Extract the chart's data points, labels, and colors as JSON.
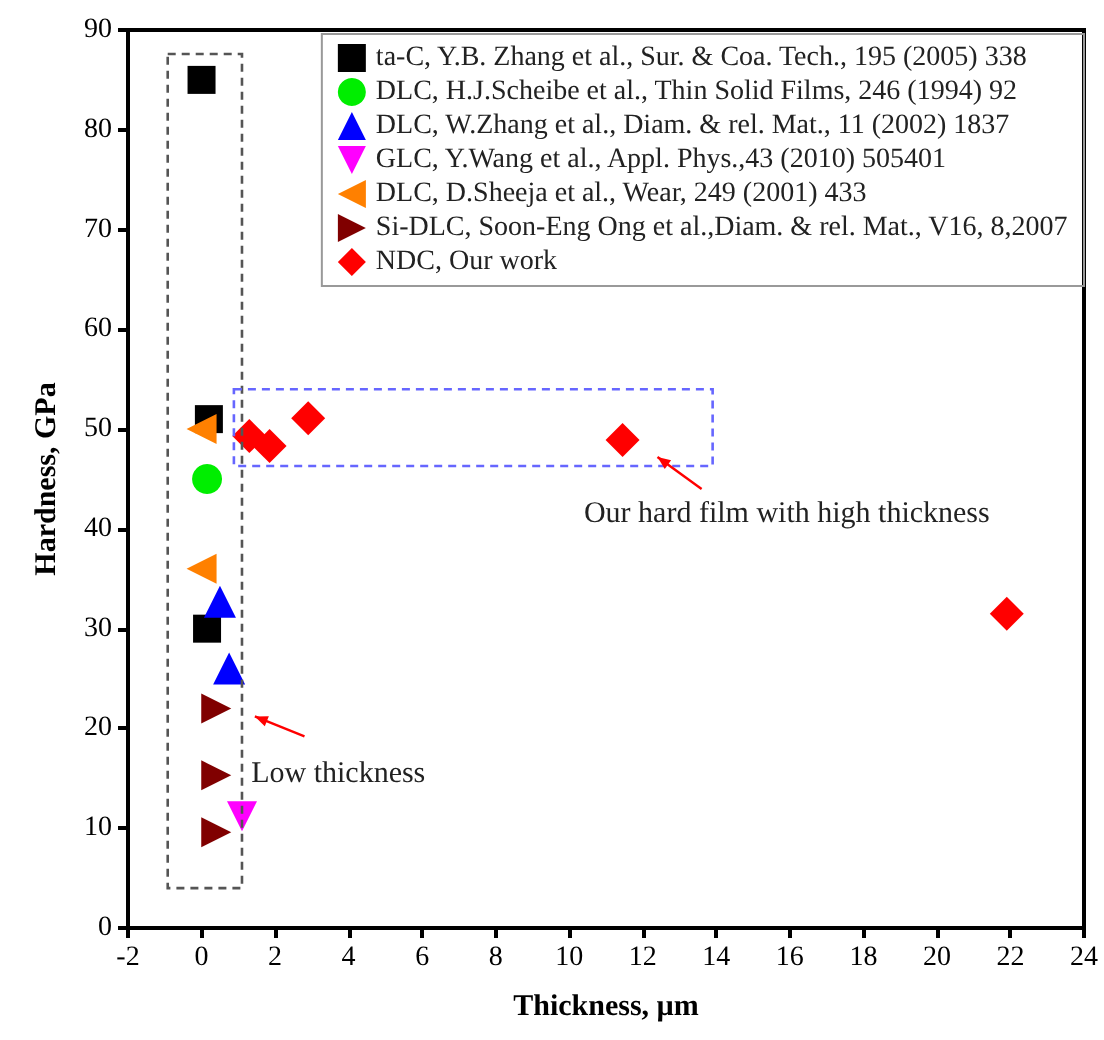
{
  "chart_data": {
    "type": "scatter",
    "xlabel": "Thickness, µm",
    "ylabel": "Hardness, GPa",
    "xlim": [
      -2,
      24
    ],
    "xticks": [
      -2,
      0,
      2,
      4,
      6,
      8,
      10,
      12,
      14,
      16,
      18,
      20,
      22,
      24
    ],
    "ylim": [
      0,
      90
    ],
    "yticks": [
      0,
      10,
      20,
      30,
      40,
      50,
      60,
      70,
      80,
      90
    ],
    "grid": false,
    "legend": "top right",
    "annotations": [
      "Low thickness",
      "Our hard film with high thickness"
    ],
    "series": [
      {
        "name": "ta-C, Y.B. Zhang et al., Sur. & Coa. Tech., 195 (2005) 338",
        "color": "#000000",
        "marker": "square",
        "x": [
          0,
          0.2,
          0.15
        ],
        "values": [
          85,
          51,
          30
        ]
      },
      {
        "name": "DLC, H.J.Scheibe et al., Thin Solid Films, 246 (1994) 92",
        "color": "#00ee00",
        "marker": "circle",
        "x": [
          0.15
        ],
        "values": [
          45
        ]
      },
      {
        "name": "DLC, W.Zhang et al., Diam. & rel. Mat., 11 (2002) 1837",
        "color": "#0000ff",
        "marker": "triangle",
        "x": [
          0.5,
          0.75
        ],
        "values": [
          32.7,
          26
        ]
      },
      {
        "name": "GLC, Y.Wang et al., Appl. Phys.,43 (2010) 505401",
        "color": "#ff00ff",
        "marker": "triangle-down",
        "x": [
          1.1
        ],
        "values": [
          11.2
        ]
      },
      {
        "name": "DLC, D.Sheeja et al., Wear, 249 (2001) 433",
        "color": "#ff8000",
        "marker": "triangle-left",
        "x": [
          0,
          0
        ],
        "values": [
          50,
          36
        ]
      },
      {
        "name": "Si-DLC, Soon-Eng Ong et al.,Diam. & rel. Mat., V16, 8,2007",
        "color": "#800000",
        "marker": "triangle-right",
        "x": [
          0.4,
          0.4,
          0.4
        ],
        "values": [
          22,
          15.3,
          9.6
        ]
      },
      {
        "name": "NDC, Our work",
        "color": "#ff0000",
        "marker": "diamond",
        "x": [
          1.3,
          1.85,
          2.9,
          11.45,
          21.9
        ],
        "values": [
          49.3,
          48.3,
          51.1,
          48.9,
          31.5
        ]
      }
    ]
  }
}
